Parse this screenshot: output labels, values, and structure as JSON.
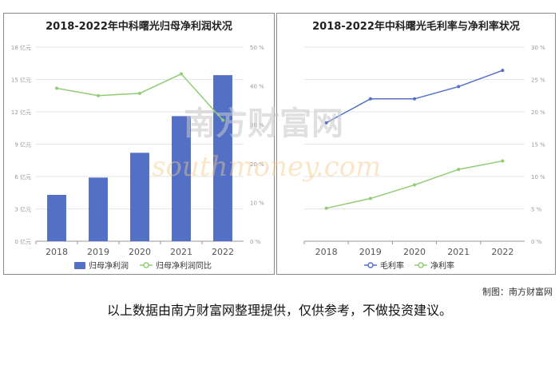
{
  "charts": {
    "left_title": "2018-2022年中科曙光归母净利润状况",
    "right_title": "2018-2022年中科曙光毛利率与净利率状况"
  },
  "watermark": {
    "brand": "南方财富网",
    "url": "southmoney.com"
  },
  "footer": {
    "credit": "制图：南方财富网",
    "disclaimer": "以上数据由南方财富网整理提供，仅供参考，不做投资建议。"
  },
  "colors": {
    "bar": "#5470c6",
    "line_green": "#91cc75",
    "line_blue": "#5470c6",
    "grid": "#e6e6e6",
    "axis": "#999999"
  },
  "chart_data": [
    {
      "type": "bar",
      "title": "2018-2022年中科曙光归母净利润状况",
      "categories": [
        "2018",
        "2019",
        "2020",
        "2021",
        "2022"
      ],
      "series": [
        {
          "name": "归母净利润",
          "type": "bar",
          "axis": "left",
          "values": [
            4.3,
            5.9,
            8.2,
            11.6,
            15.4
          ]
        },
        {
          "name": "归母净利润同比",
          "type": "line",
          "axis": "right",
          "values": [
            39.4,
            37.5,
            38.1,
            43.1,
            31.2
          ]
        }
      ],
      "yleft": {
        "ticks": [
          "0 亿元",
          "3 亿元",
          "6 亿元",
          "9 亿元",
          "12 亿元",
          "15 亿元",
          "18 亿元"
        ],
        "min": 0,
        "max": 18,
        "step": 3
      },
      "yright": {
        "ticks": [
          "0 %",
          "10 %",
          "20 %",
          "30 %",
          "40 %",
          "50 %"
        ],
        "min": 0,
        "max": 50,
        "step": 10
      },
      "legend_position": "bottom",
      "grid": true
    },
    {
      "type": "line",
      "title": "2018-2022年中科曙光毛利率与净利率状况",
      "categories": [
        "2018",
        "2019",
        "2020",
        "2021",
        "2022"
      ],
      "series": [
        {
          "name": "毛利率",
          "values": [
            18.3,
            22.0,
            22.0,
            23.9,
            26.4
          ]
        },
        {
          "name": "净利率",
          "values": [
            5.1,
            6.6,
            8.7,
            11.1,
            12.4
          ]
        }
      ],
      "yright": {
        "ticks": [
          "0 %",
          "5 %",
          "10 %",
          "15 %",
          "20 %",
          "25 %",
          "30 %"
        ],
        "min": 0,
        "max": 30,
        "step": 5
      },
      "legend_position": "bottom",
      "grid": true
    }
  ]
}
